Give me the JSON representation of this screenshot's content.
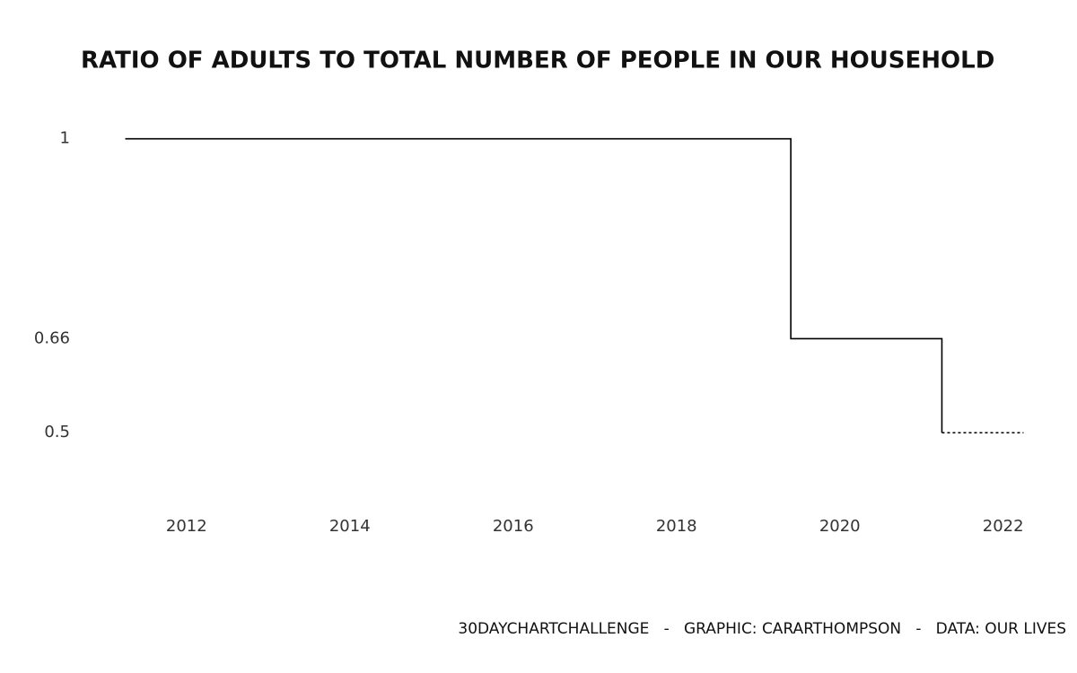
{
  "chart_data": {
    "type": "step",
    "title": "RATIO OF ADULTS TO TOTAL NUMBER OF PEOPLE IN OUR HOUSEHOLD",
    "caption": "30DAYCHARTCHALLENGE   -   GRAPHIC: CARARTHOMPSON   -   DATA: OUR LIVES",
    "step": "post",
    "series": [
      {
        "color": "#000000",
        "linestyle": "solid",
        "x": [
          2011.25,
          2019.4,
          2021.25
        ],
        "values": [
          1,
          0.66,
          0.5
        ]
      },
      {
        "color": "#000000",
        "linestyle": "dotted",
        "x": [
          2021.25,
          2022.25
        ],
        "values": [
          0.5,
          0.5
        ]
      }
    ],
    "xlim": [
      2011.2,
      2022.3
    ],
    "xticks": [
      2012,
      2014,
      2016,
      2018,
      2020,
      2022
    ],
    "ylim": [
      0.45,
      1.03
    ],
    "yticks": [
      0.5,
      0.66,
      1
    ],
    "grid": false
  }
}
